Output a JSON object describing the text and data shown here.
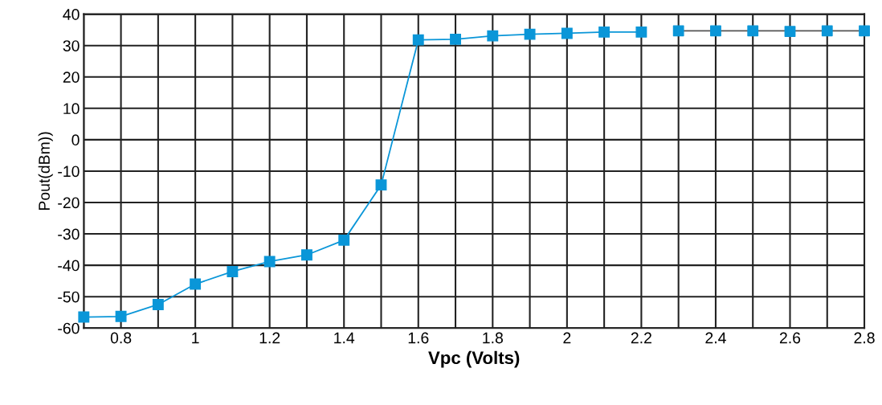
{
  "chart_data": {
    "type": "line",
    "xlabel": "Vpc (Volts)",
    "ylabel": "Pout(dBm))",
    "xlim": [
      0.7,
      2.8
    ],
    "ylim": [
      -60,
      40
    ],
    "xticks": [
      {
        "value": 0.7,
        "label": null
      },
      0.8,
      {
        "value": 0.9,
        "label": null
      },
      1,
      {
        "value": 1.1,
        "label": null
      },
      1.2,
      {
        "value": 1.3,
        "label": null
      },
      1.4,
      {
        "value": 1.5,
        "label": null
      },
      1.6,
      {
        "value": 1.7,
        "label": null
      },
      1.8,
      {
        "value": 1.9,
        "label": null
      },
      2,
      {
        "value": 2.1,
        "label": null
      },
      2.2,
      {
        "value": 2.3,
        "label": null
      },
      2.4,
      {
        "value": 2.5,
        "label": null
      },
      2.6,
      {
        "value": 2.7,
        "label": null
      },
      2.8
    ],
    "yticks": [
      -60,
      -50,
      -40,
      -30,
      -20,
      -10,
      0,
      10,
      20,
      30,
      40
    ],
    "grid": true,
    "marker": "square",
    "series": [
      {
        "color": "#0a96d8",
        "x": [
          0.7,
          0.8,
          0.9,
          1.0,
          1.1,
          1.2,
          1.3,
          1.4,
          1.5,
          1.6,
          1.7,
          1.8,
          1.9,
          2.0,
          2.1,
          2.2
        ],
        "values": [
          -56.5,
          -56.3,
          -52.5,
          -46,
          -42,
          -38.8,
          -36.7,
          -32,
          -14.4,
          31.8,
          32,
          33.1,
          33.6,
          33.9,
          34.3,
          34.3
        ]
      },
      {
        "type": "line",
        "color": "#555555",
        "marker": "none",
        "x": [
          2.3,
          2.8
        ],
        "values": [
          34.7,
          34.7
        ]
      },
      {
        "type": "scatter",
        "color": "#0a96d8",
        "x": [
          2.3,
          2.4,
          2.5,
          2.6,
          2.7,
          2.8
        ],
        "values": [
          34.7,
          34.7,
          34.7,
          34.5,
          34.7,
          34.7
        ]
      }
    ]
  }
}
